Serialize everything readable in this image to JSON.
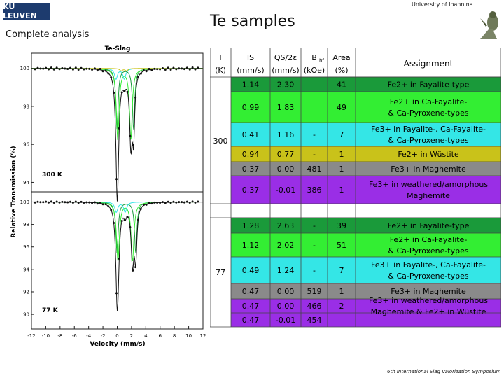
{
  "header": {
    "logo_text": "KU LEUVEN",
    "subtitle": "Complete analysis",
    "title": "Te samples",
    "university": "University of Ioannina"
  },
  "footer": {
    "text": "6th International Slag Valorization Symposium"
  },
  "plot": {
    "title": "Te-Slag",
    "ylabel": "Relative Transmission (%)",
    "xlabel": "Velocity (mm/s)",
    "x_ticks": [
      "-12",
      "-10",
      "-8",
      "-6",
      "-4",
      "-2",
      "0",
      "2",
      "4",
      "6",
      "8",
      "10",
      "12"
    ],
    "panels": [
      {
        "label": "300 K",
        "y_ticks": [
          "100",
          "98",
          "96",
          "94"
        ]
      },
      {
        "label": "77 K",
        "y_ticks": [
          "100",
          "98",
          "96",
          "94",
          "92",
          "90"
        ]
      }
    ]
  },
  "table": {
    "headers": {
      "T": [
        "T",
        "(K)"
      ],
      "IS": [
        "IS",
        "(mm/s)"
      ],
      "QS": [
        "QS/2ε",
        "(mm/s)"
      ],
      "Bhf": [
        "B",
        "(kOe)"
      ],
      "Bhf_sub": "hf",
      "Area": [
        "Area",
        "(%)"
      ],
      "Assignment": "Assignment"
    },
    "temps": [
      "300",
      "77"
    ],
    "rows_300": [
      {
        "IS": "1.14",
        "QS": "2.30",
        "Bhf": "-",
        "Area": "41",
        "Assignment": [
          "Fe2+ in Fayalite-type"
        ]
      },
      {
        "IS": "0.99",
        "QS": "1.83",
        "Bhf": "",
        "Area": "49",
        "Assignment": [
          "Fe2+ in Ca-Fayalite-",
          "& Ca-Pyroxene-types"
        ]
      },
      {
        "IS": "0.41",
        "QS": "1.16",
        "Bhf": "-",
        "Area": "7",
        "Assignment": [
          "Fe3+ in Fayalite-, Ca-Fayalite-",
          "& Ca-Pyroxene-types"
        ]
      },
      {
        "IS": "0.94",
        "QS": "0.77",
        "Bhf": "-",
        "Area": "1",
        "Assignment": [
          "Fe2+ in Wüstite"
        ]
      },
      {
        "IS": "0.37",
        "QS": "0.00",
        "Bhf": "481",
        "Area": "1",
        "Assignment": [
          "Fe3+ in Maghemite"
        ]
      },
      {
        "IS": "0.37",
        "QS": "-0.01",
        "Bhf": "386",
        "Area": "1",
        "Assignment": [
          "Fe3+ in weathered/amorphous",
          "Maghemite"
        ]
      }
    ],
    "rows_77": [
      {
        "IS": "1.28",
        "QS": "2.63",
        "Bhf": "-",
        "Area": "39",
        "Assignment": [
          "Fe2+ in Fayalite-type"
        ]
      },
      {
        "IS": "1.12",
        "QS": "2.02",
        "Bhf": "-",
        "Area": "51",
        "Assignment": [
          "Fe2+ in Ca-Fayalite-",
          "& Ca-Pyroxene-types"
        ]
      },
      {
        "IS": "0.49",
        "QS": "1.24",
        "Bhf": "-",
        "Area": "7",
        "Assignment": [
          "Fe3+ in Fayalite-, Ca-Fayalite-",
          "& Ca-Pyroxene-types"
        ]
      },
      {
        "IS": "0.47",
        "QS": "0.00",
        "Bhf": "519",
        "Area": "1",
        "Assignment": [
          "Fe3+ in Maghemite"
        ]
      },
      {
        "IS": "0.47",
        "QS": "0.00",
        "Bhf": "466",
        "Area": "2",
        "Assignment": [
          "Fe3+ in weathered/amorphous",
          "Maghemite & Fe2+ in Wüstite"
        ]
      },
      {
        "IS": "0.47",
        "QS": "-0.01",
        "Bhf": "454",
        "Area": "",
        "Assignment": []
      }
    ],
    "colors": {
      "fayalite": "#1a9a3a",
      "ca_fayalite": "#33ee33",
      "fe3_fayalite": "#34e6e6",
      "wustite": "#c9c21a",
      "maghemite": "#8a8a8a",
      "weathered": "#9a2ee6"
    }
  }
}
